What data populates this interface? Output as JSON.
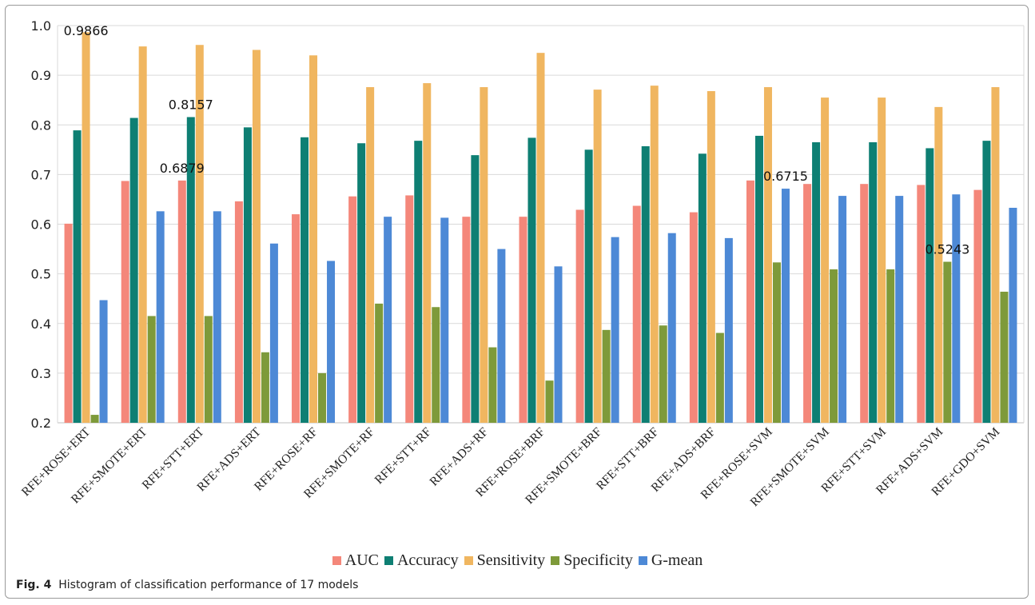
{
  "caption": {
    "label": "Fig. 4",
    "text": "Histogram of classification performance of 17 models"
  },
  "chart_data": {
    "type": "bar",
    "ylim": [
      0.2,
      1.0
    ],
    "yticks": [
      "0.2",
      "0.3",
      "0.4",
      "0.5",
      "0.6",
      "0.7",
      "0.8",
      "0.9",
      "1.0"
    ],
    "grid": true,
    "legend_position": "bottom",
    "categories": [
      "RFE+ROSE+ERT",
      "RFE+SMOTE+ERT",
      "RFE+STT+ERT",
      "RFE+ADS+ERT",
      "RFE+ROSE+RF",
      "RFE+SMOTE+RF",
      "RFE+STT+RF",
      "RFE+ADS+RF",
      "RFE+ROSE+BRF",
      "RFE+SMOTE+BRF",
      "RFE+STT+BRF",
      "RFE+ADS+BRF",
      "RFE+ROSE+SVM",
      "RFE+SMOTE+SVM",
      "RFE+STT+SVM",
      "RFE+ADS+SVM",
      "RFE+GDO+SVM"
    ],
    "series": [
      {
        "name": "AUC",
        "color": "#f4877a",
        "values": [
          0.601,
          0.687,
          0.6879,
          0.646,
          0.62,
          0.656,
          0.658,
          0.615,
          0.615,
          0.629,
          0.637,
          0.624,
          0.688,
          0.681,
          0.681,
          0.679,
          0.669
        ]
      },
      {
        "name": "Accuracy",
        "color": "#0e7f73",
        "values": [
          0.789,
          0.814,
          0.8157,
          0.795,
          0.775,
          0.763,
          0.768,
          0.739,
          0.774,
          0.75,
          0.757,
          0.742,
          0.778,
          0.765,
          0.765,
          0.753,
          0.768
        ]
      },
      {
        "name": "Sensitivity",
        "color": "#f0b660",
        "values": [
          0.9866,
          0.958,
          0.961,
          0.951,
          0.94,
          0.876,
          0.884,
          0.876,
          0.945,
          0.871,
          0.879,
          0.868,
          0.876,
          0.855,
          0.855,
          0.836,
          0.876
        ]
      },
      {
        "name": "Specificity",
        "color": "#7e9a3a",
        "values": [
          0.216,
          0.415,
          0.415,
          0.342,
          0.3,
          0.44,
          0.433,
          0.352,
          0.285,
          0.387,
          0.396,
          0.381,
          0.523,
          0.509,
          0.509,
          0.5243,
          0.464
        ]
      },
      {
        "name": "G-mean",
        "color": "#4d89d6",
        "values": [
          0.447,
          0.626,
          0.626,
          0.561,
          0.526,
          0.615,
          0.613,
          0.55,
          0.515,
          0.574,
          0.582,
          0.572,
          0.6715,
          0.657,
          0.657,
          0.66,
          0.633
        ]
      }
    ],
    "annotations": [
      {
        "text": "0.9866",
        "series": 2,
        "category": 0
      },
      {
        "text": "0.8157",
        "series": 1,
        "category": 2
      },
      {
        "text": "0.6879",
        "series": 0,
        "category": 2
      },
      {
        "text": "0.6715",
        "series": 4,
        "category": 12
      },
      {
        "text": "0.5243",
        "series": 3,
        "category": 15
      }
    ]
  }
}
